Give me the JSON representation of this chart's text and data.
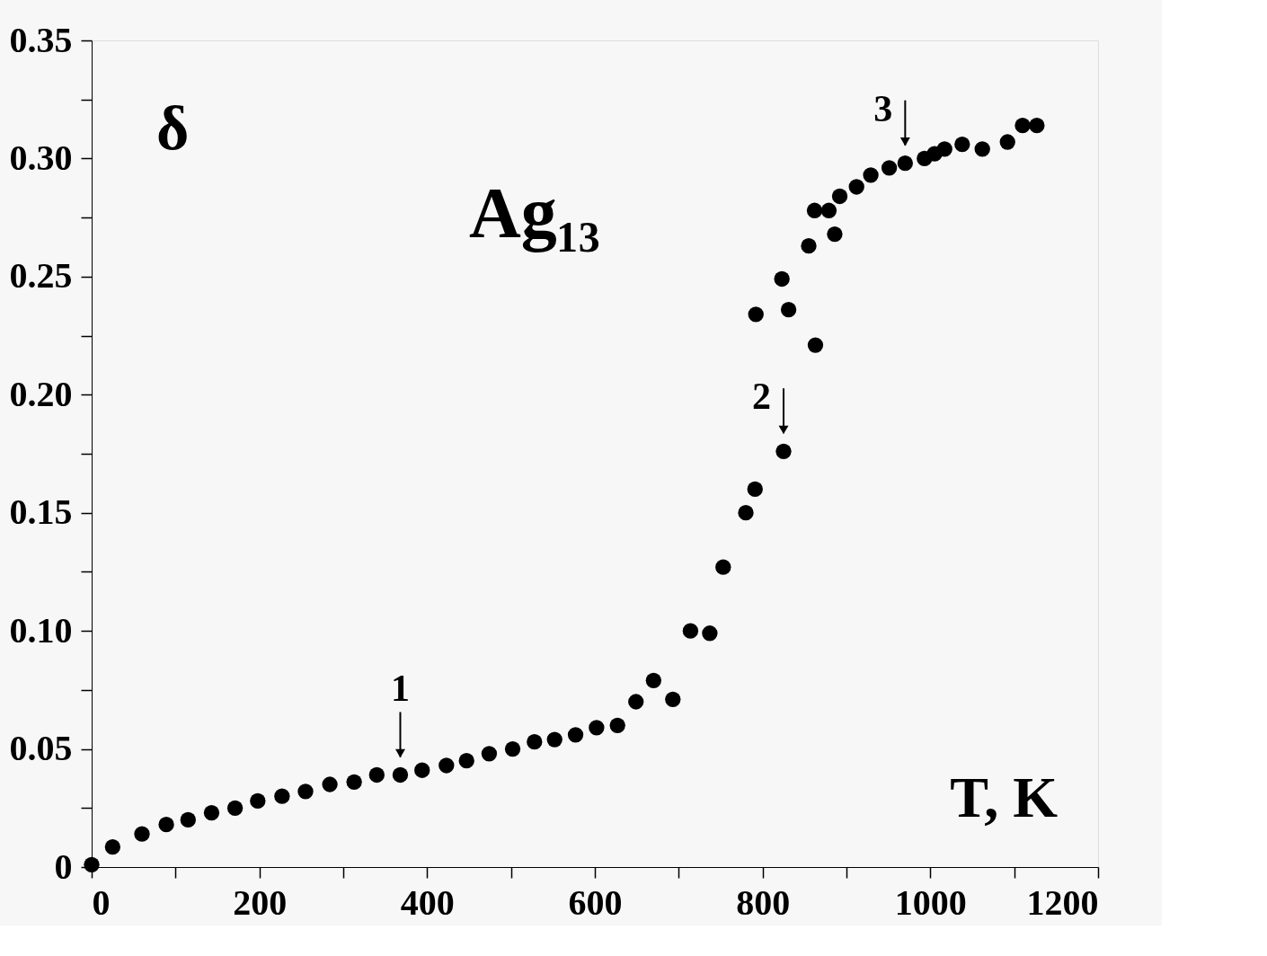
{
  "chart_data": {
    "type": "scatter",
    "title": "Ag₁₃",
    "xlabel": "T, K",
    "ylabel": "δ",
    "x": [
      0,
      25,
      60,
      89,
      115,
      143,
      171,
      198,
      227,
      255,
      284,
      313,
      340,
      368,
      394,
      423,
      447,
      474,
      502,
      528,
      552,
      577,
      602,
      627,
      649,
      670,
      693,
      714,
      737,
      753,
      780,
      791,
      792,
      823,
      831,
      825,
      863,
      855,
      862,
      879,
      886,
      892,
      912,
      929,
      951,
      970,
      993,
      1005,
      1017,
      1038,
      1062,
      1092,
      1110,
      1127
    ],
    "series": [
      {
        "color": "#000000",
        "values": [
          0.001,
          0.0085,
          0.014,
          0.018,
          0.02,
          0.023,
          0.025,
          0.028,
          0.03,
          0.032,
          0.035,
          0.036,
          0.039,
          0.039,
          0.041,
          0.043,
          0.045,
          0.048,
          0.05,
          0.053,
          0.054,
          0.056,
          0.059,
          0.06,
          0.07,
          0.079,
          0.071,
          0.1,
          0.099,
          0.127,
          0.15,
          0.16,
          0.234,
          0.249,
          0.236,
          0.176,
          0.221,
          0.263,
          0.278,
          0.278,
          0.268,
          0.284,
          0.288,
          0.293,
          0.296,
          0.298,
          0.3,
          0.302,
          0.304,
          0.306,
          0.304,
          0.307,
          0.314,
          0.314
        ]
      }
    ],
    "marker": "circle",
    "xlim": [
      0,
      1200
    ],
    "ylim": [
      0,
      0.35
    ],
    "xticks": [
      0,
      {
        "value": 100,
        "label": null
      },
      200,
      {
        "value": 300,
        "label": null
      },
      400,
      {
        "value": 500,
        "label": null
      },
      600,
      {
        "value": 700,
        "label": null
      },
      800,
      {
        "value": 900,
        "label": null
      },
      1000,
      {
        "value": 1100,
        "label": null
      },
      1200
    ],
    "yticks": [
      {
        "value": 0,
        "label": "0"
      },
      {
        "value": 0.025,
        "label": null
      },
      {
        "value": 0.05,
        "label": "0.05"
      },
      {
        "value": 0.075,
        "label": null
      },
      {
        "value": 0.1,
        "label": "0.10"
      },
      {
        "value": 0.125,
        "label": null
      },
      {
        "value": 0.15,
        "label": "0.15"
      },
      {
        "value": 0.175,
        "label": null
      },
      {
        "value": 0.2,
        "label": "0.20"
      },
      {
        "value": 0.225,
        "label": null
      },
      {
        "value": 0.25,
        "label": "0.25"
      },
      {
        "value": 0.275,
        "label": null
      },
      {
        "value": 0.3,
        "label": "0.30"
      },
      {
        "value": 0.325,
        "label": null
      },
      {
        "value": 0.35,
        "label": "0.35"
      }
    ],
    "annotations": [
      {
        "text": "1",
        "x": 368,
        "y": 0.039
      },
      {
        "text": "2",
        "x": 825,
        "y": 0.176
      },
      {
        "text": "3",
        "x": 970,
        "y": 0.298
      }
    ],
    "grid": false
  }
}
